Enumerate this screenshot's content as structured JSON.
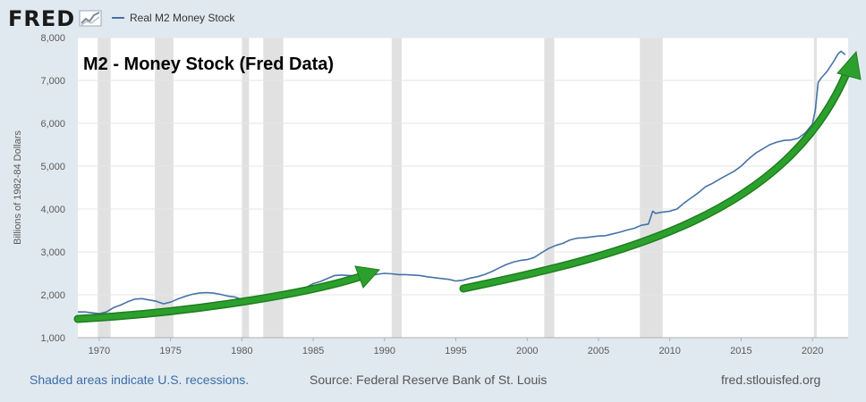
{
  "brand": {
    "logo_text": "FRED",
    "logo_icon": "chart-trend-icon"
  },
  "legend": {
    "series_label": "Real M2 Money Stock",
    "series_color": "#4572a7"
  },
  "overlay_title": "M2 - Money Stock (Fred Data)",
  "footer": {
    "recession_note": "Shaded areas indicate U.S. recessions.",
    "source": "Source: Federal Reserve Bank of St. Louis",
    "url": "fred.stlouisfed.org",
    "note_color": "#3a6eaa",
    "text_color": "#555555"
  },
  "colors": {
    "background": "#e1e9f0",
    "plot_background": "#ffffff",
    "recession_fill": "#e1e1e1",
    "trend_arrow": "#2ca02c",
    "trend_arrow_dark": "#1e7d1e"
  },
  "chart_data": {
    "type": "line",
    "title": "M2 - Money Stock (Fred Data)",
    "xlabel": "",
    "ylabel": "Billions of 1982-84 Dollars",
    "xlim": [
      1968.5,
      2022.5
    ],
    "ylim": [
      1000,
      8000
    ],
    "grid": true,
    "legend_position": "top-left",
    "x_ticks": [
      1970,
      1975,
      1980,
      1985,
      1990,
      1995,
      2000,
      2005,
      2010,
      2015,
      2020
    ],
    "y_ticks": [
      1000,
      2000,
      3000,
      4000,
      5000,
      6000,
      7000,
      8000
    ],
    "y_tick_labels": [
      "1,000",
      "2,000",
      "3,000",
      "4,000",
      "5,000",
      "6,000",
      "7,000",
      "8,000"
    ],
    "recessions": [
      [
        1969.9,
        1970.8
      ],
      [
        1973.9,
        1975.2
      ],
      [
        1980.0,
        1980.5
      ],
      [
        1981.5,
        1982.9
      ],
      [
        1990.5,
        1991.2
      ],
      [
        2001.2,
        2001.9
      ],
      [
        2007.9,
        2009.5
      ],
      [
        2020.1,
        2020.3
      ]
    ],
    "series": [
      {
        "name": "Real M2 Money Stock",
        "x": [
          1968.5,
          1969.0,
          1969.5,
          1970.0,
          1970.5,
          1971.0,
          1971.5,
          1972.0,
          1972.5,
          1973.0,
          1973.5,
          1974.0,
          1974.5,
          1975.0,
          1975.5,
          1976.0,
          1976.5,
          1977.0,
          1977.5,
          1978.0,
          1978.5,
          1979.0,
          1979.5,
          1980.0,
          1980.5,
          1981.0,
          1981.5,
          1982.0,
          1982.5,
          1983.0,
          1983.5,
          1984.0,
          1984.5,
          1985.0,
          1985.5,
          1986.0,
          1986.5,
          1987.0,
          1987.5,
          1988.0,
          1988.5,
          1989.0,
          1989.5,
          1990.0,
          1990.5,
          1991.0,
          1991.5,
          1992.0,
          1992.5,
          1993.0,
          1993.5,
          1994.0,
          1994.5,
          1995.0,
          1995.5,
          1996.0,
          1996.5,
          1997.0,
          1997.5,
          1998.0,
          1998.5,
          1999.0,
          1999.5,
          2000.0,
          2000.5,
          2001.0,
          2001.5,
          2002.0,
          2002.5,
          2003.0,
          2003.5,
          2004.0,
          2004.5,
          2005.0,
          2005.5,
          2006.0,
          2006.5,
          2007.0,
          2007.5,
          2008.0,
          2008.5,
          2008.8,
          2009.0,
          2009.5,
          2010.0,
          2010.5,
          2011.0,
          2011.5,
          2012.0,
          2012.5,
          2013.0,
          2013.5,
          2014.0,
          2014.5,
          2015.0,
          2015.5,
          2016.0,
          2016.5,
          2017.0,
          2017.5,
          2018.0,
          2018.5,
          2019.0,
          2019.5,
          2020.0,
          2020.2,
          2020.4,
          2020.6,
          2021.0,
          2021.5,
          2021.8,
          2022.0,
          2022.3
        ],
        "values": [
          1600,
          1600,
          1580,
          1560,
          1600,
          1700,
          1760,
          1840,
          1900,
          1910,
          1880,
          1850,
          1790,
          1830,
          1900,
          1960,
          2010,
          2040,
          2050,
          2040,
          2010,
          1970,
          1950,
          1890,
          1860,
          1880,
          1860,
          1900,
          1960,
          2080,
          2110,
          2130,
          2170,
          2260,
          2310,
          2380,
          2450,
          2460,
          2450,
          2450,
          2470,
          2450,
          2480,
          2500,
          2490,
          2470,
          2470,
          2460,
          2450,
          2420,
          2400,
          2380,
          2360,
          2320,
          2340,
          2390,
          2420,
          2470,
          2540,
          2620,
          2700,
          2760,
          2800,
          2820,
          2870,
          2980,
          3080,
          3150,
          3200,
          3280,
          3320,
          3330,
          3350,
          3370,
          3380,
          3420,
          3460,
          3510,
          3550,
          3620,
          3650,
          3950,
          3900,
          3930,
          3950,
          4000,
          4140,
          4260,
          4380,
          4520,
          4600,
          4700,
          4790,
          4880,
          5000,
          5160,
          5300,
          5400,
          5500,
          5560,
          5600,
          5610,
          5650,
          5780,
          5980,
          6300,
          6950,
          7050,
          7200,
          7450,
          7620,
          7680,
          7600
        ]
      }
    ]
  }
}
